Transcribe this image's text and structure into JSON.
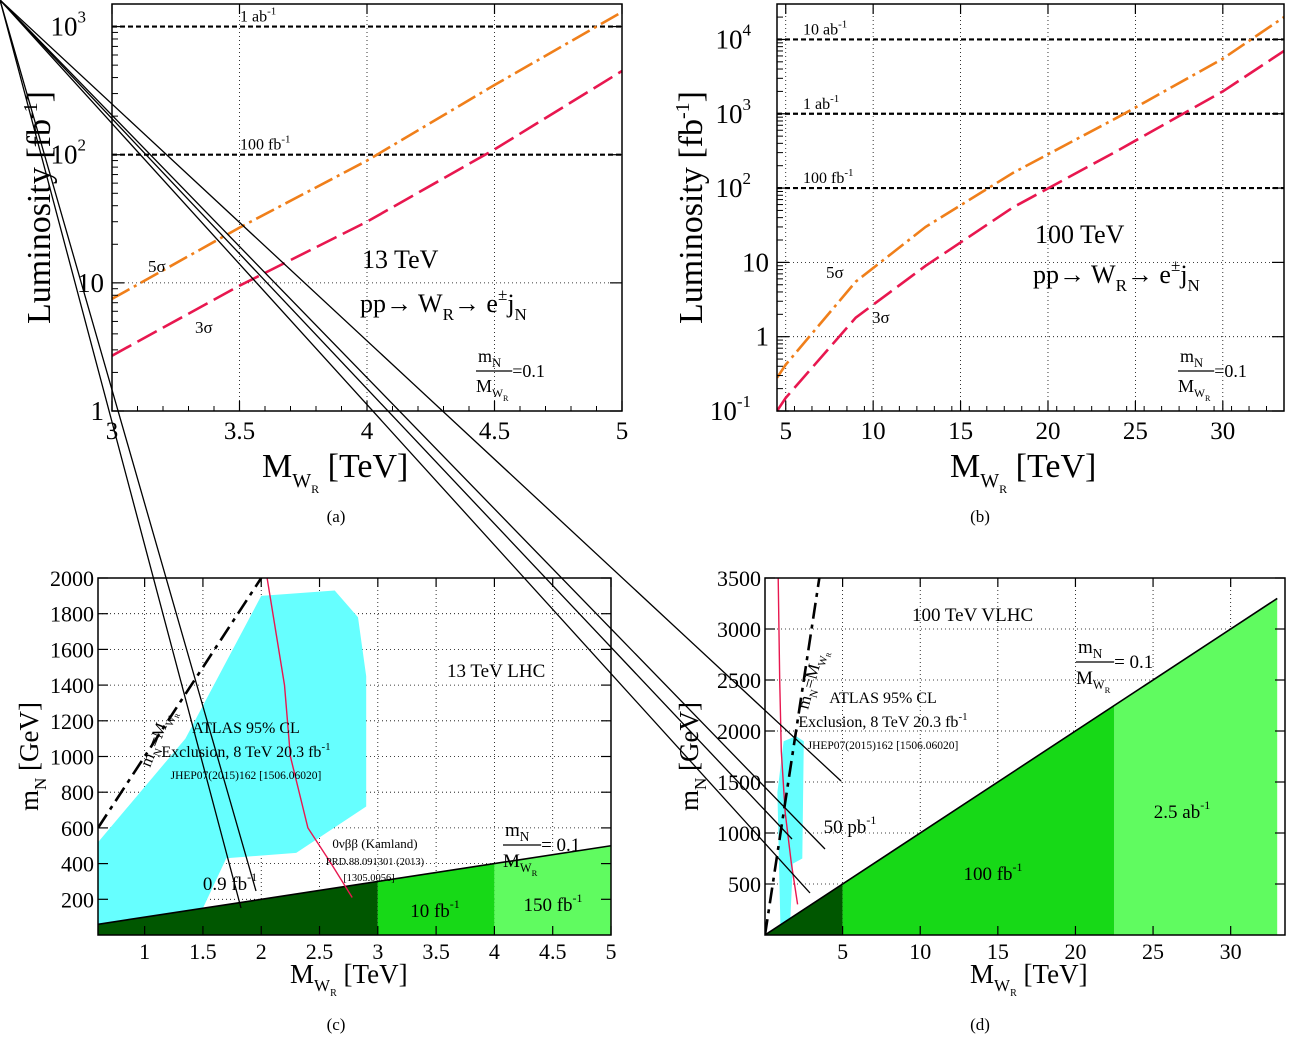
{
  "chart_data": [
    {
      "panel": "(a)",
      "type": "line",
      "xlabel": "M",
      "xlabel_sub": "W",
      "xlabel_subsub": "R",
      "xlabel_unit": "[TeV]",
      "ylabel": "Luminosity [fb",
      "ylabel_sup": "-1",
      "ylabel_end": "]",
      "xlim": [
        3,
        5
      ],
      "ylim": [
        1,
        1500
      ],
      "yscale": "log",
      "grid": true,
      "xticks": [
        {
          "v": 3,
          "label": "3"
        },
        {
          "v": 3.5,
          "label": "3.5"
        },
        {
          "v": 4,
          "label": "4"
        },
        {
          "v": 4.5,
          "label": "4.5"
        },
        {
          "v": 5,
          "label": "5"
        }
      ],
      "yticks": [
        {
          "v": 1,
          "label": "1"
        },
        {
          "v": 10,
          "label": "10"
        },
        {
          "v": 100,
          "label": "10",
          "sup": "2"
        },
        {
          "v": 1000,
          "label": "10",
          "sup": "3"
        }
      ],
      "series": [
        {
          "name": "5σ",
          "color": "#f07f1a",
          "dash": "20,5,3,5",
          "x": [
            3.0,
            3.5,
            4.0,
            4.5,
            5.0
          ],
          "y": [
            7.5,
            27,
            90,
            350,
            1300
          ]
        },
        {
          "name": "3σ",
          "color": "#e8174f",
          "dash": "22,7",
          "x": [
            3.0,
            3.5,
            4.0,
            4.5,
            5.0
          ],
          "y": [
            2.7,
            9.5,
            30,
            110,
            450
          ]
        }
      ],
      "hlines": [
        {
          "y": 1000,
          "label": "1 ab",
          "sup": "-1"
        },
        {
          "y": 100,
          "label": "100 fb",
          "sup": "-1"
        }
      ],
      "annotations": {
        "energy": "13 TeV",
        "process": {
          "a": "pp→ W",
          "a_sub": "R",
          "b": "→ e",
          "b_sup": "±",
          "c": "j",
          "c_sub": "N"
        },
        "ratio": {
          "num": "m",
          "num_sub": "N",
          "den": "M",
          "den_sub": "W",
          "den_subsub": "R",
          "value": "=0.1"
        }
      }
    },
    {
      "panel": "(b)",
      "type": "line",
      "xlabel": "M",
      "xlabel_sub": "W",
      "xlabel_subsub": "R",
      "xlabel_unit": "[TeV]",
      "ylabel": "Luminosity [fb",
      "ylabel_sup": "-1",
      "ylabel_end": "]",
      "xlim": [
        4.5,
        33.5
      ],
      "ylim": [
        0.1,
        30000
      ],
      "yscale": "log",
      "grid": true,
      "xticks": [
        {
          "v": 5,
          "label": "5"
        },
        {
          "v": 10,
          "label": "10"
        },
        {
          "v": 15,
          "label": "15"
        },
        {
          "v": 20,
          "label": "20"
        },
        {
          "v": 25,
          "label": "25"
        },
        {
          "v": 30,
          "label": "30"
        }
      ],
      "yticks": [
        {
          "v": 0.1,
          "label": "10",
          "sup": "-1"
        },
        {
          "v": 1,
          "label": "1"
        },
        {
          "v": 10,
          "label": "10"
        },
        {
          "v": 100,
          "label": "10",
          "sup": "2"
        },
        {
          "v": 1000,
          "label": "10",
          "sup": "3"
        },
        {
          "v": 10000,
          "label": "10",
          "sup": "4"
        }
      ],
      "series": [
        {
          "name": "5σ",
          "color": "#f07f1a",
          "dash": "20,5,3,5",
          "x": [
            4.5,
            5,
            9,
            13,
            18,
            24,
            30,
            33.5
          ],
          "y": [
            0.28,
            0.42,
            5.5,
            30,
            160,
            900,
            5500,
            20000
          ]
        },
        {
          "name": "3σ",
          "color": "#e8174f",
          "dash": "22,7",
          "x": [
            4.5,
            5,
            9,
            13,
            18,
            24,
            30,
            33.5
          ],
          "y": [
            0.1,
            0.15,
            1.8,
            9,
            55,
            320,
            2000,
            7000
          ]
        }
      ],
      "hlines": [
        {
          "y": 10000,
          "label": "10 ab",
          "sup": "-1"
        },
        {
          "y": 1000,
          "label": "1 ab",
          "sup": "-1"
        },
        {
          "y": 100,
          "label": "100 fb",
          "sup": "-1"
        }
      ],
      "annotations": {
        "energy": "100 TeV",
        "process": {
          "a": "pp→ W",
          "a_sub": "R",
          "b": "→ e",
          "b_sup": "±",
          "c": "j",
          "c_sub": "N"
        },
        "ratio": {
          "num": "m",
          "num_sub": "N",
          "den": "M",
          "den_sub": "W",
          "den_subsub": "R",
          "value": "=0.1"
        }
      }
    },
    {
      "panel": "(c)",
      "type": "area",
      "xlabel": "M",
      "xlabel_sub": "W",
      "xlabel_subsub": "R",
      "xlabel_unit": "[TeV]",
      "ylabel": "m",
      "ylabel_sub": "N",
      "ylabel_unit": "[GeV]",
      "xlim": [
        0.6,
        5
      ],
      "ylim": [
        0,
        2000
      ],
      "grid": true,
      "xticks": [
        1,
        1.5,
        2,
        2.5,
        3,
        3.5,
        4,
        4.5,
        5
      ],
      "yticks": [
        200,
        400,
        600,
        800,
        1000,
        1200,
        1400,
        1600,
        1800,
        2000
      ],
      "title": "13 TeV LHC",
      "exclusion": {
        "color": "#66ffff",
        "lines": [
          "ATLAS 95% CL",
          "Exclusion, 8 TeV 20.3 fb",
          "JHEP07(2015)162 [1506.06020]"
        ],
        "sup": "-1",
        "polygon": [
          [
            0.6,
            520
          ],
          [
            0.6,
            50
          ],
          [
            1.5,
            50
          ],
          [
            1.5,
            150
          ],
          [
            1.7,
            430
          ],
          [
            2.3,
            460
          ],
          [
            2.9,
            720
          ],
          [
            2.9,
            1450
          ],
          [
            2.83,
            1780
          ],
          [
            2.63,
            1930
          ],
          [
            2.0,
            1900
          ],
          [
            1.35,
            1100
          ],
          [
            0.6,
            520
          ]
        ]
      },
      "regions": [
        {
          "label": "0.9 fb",
          "sup": "-1",
          "x_from": 0.6,
          "x_to": 3.0,
          "color": "#005700"
        },
        {
          "label": "10 fb",
          "sup": "-1",
          "x_from": 3.0,
          "x_to": 4.0,
          "color": "#17d917"
        },
        {
          "label": "150 fb",
          "sup": "-1",
          "x_from": 4.0,
          "x_to": 5.0,
          "color": "#60fb60"
        }
      ],
      "ratio_line": {
        "slope": 100,
        "num": "m",
        "num_sub": "N",
        "den": "M",
        "den_sub": "W",
        "den_subsub": "R",
        "value": "= 0.1"
      },
      "diagonal_label": {
        "a": "m",
        "a_sub": "N",
        "b": "=M",
        "b_sub": "W",
        "b_subsub": "R"
      },
      "diagonal": {
        "x": [
          0.6,
          2.0
        ],
        "y": [
          600,
          2000
        ]
      },
      "kamland": {
        "lines": [
          "0νββ (Kamland)",
          "PRD.88.091301 (2013)",
          "[1305.0056]"
        ],
        "x": [
          2.05,
          2.2,
          2.25,
          2.4,
          2.6,
          2.78
        ],
        "y": [
          2000,
          1400,
          1000,
          600,
          400,
          210
        ],
        "color": "#e8174f"
      }
    },
    {
      "panel": "(d)",
      "type": "area",
      "xlabel": "M",
      "xlabel_sub": "W",
      "xlabel_subsub": "R",
      "xlabel_unit": "[TeV]",
      "ylabel": "m",
      "ylabel_sub": "N",
      "ylabel_unit": "[GeV]",
      "xlim": [
        0,
        33.5
      ],
      "ylim": [
        0,
        3500
      ],
      "grid": true,
      "xticks": [
        5,
        10,
        15,
        20,
        25,
        30
      ],
      "yticks": [
        500,
        1000,
        1500,
        2000,
        2500,
        3000,
        3500
      ],
      "title": "100 TeV VLHC",
      "exclusion": {
        "color": "#66ffff",
        "lines": [
          "ATLAS 95% CL",
          "Exclusion, 8 TeV 20.3 fb",
          "JHEP07(2015)162 [1506.06020]"
        ],
        "sup": "-1",
        "polygon": [
          [
            0.8,
            1400
          ],
          [
            1.0,
            50
          ],
          [
            1.6,
            50
          ],
          [
            1.8,
            700
          ],
          [
            2.4,
            750
          ],
          [
            2.5,
            1900
          ],
          [
            2.0,
            1950
          ],
          [
            1.2,
            1900
          ],
          [
            0.8,
            1400
          ]
        ]
      },
      "regions": [
        {
          "label": "50 pb",
          "sup": "-1",
          "x_from": 0,
          "x_to": 5.0,
          "color": "#005700"
        },
        {
          "label": "100 fb",
          "sup": "-1",
          "x_from": 5.0,
          "x_to": 22.5,
          "color": "#17d917"
        },
        {
          "label": "2.5 ab",
          "sup": "-1",
          "x_from": 22.5,
          "x_to": 33.0,
          "color": "#60fb60"
        }
      ],
      "ratio_line": {
        "slope": 100,
        "num": "m",
        "num_sub": "N",
        "den": "M",
        "den_sub": "W",
        "den_subsub": "R",
        "value": "= 0.1"
      },
      "diagonal_label": {
        "a": "m",
        "a_sub": "N",
        "b": "=M",
        "b_sub": "W",
        "b_subsub": "R"
      },
      "diagonal": {
        "x": [
          0,
          3.5
        ],
        "y": [
          0,
          3500
        ]
      },
      "kamland": {
        "x": [
          0.85,
          0.95,
          1.05,
          1.3,
          1.7,
          2.1
        ],
        "y": [
          3500,
          2500,
          1800,
          1200,
          700,
          300
        ],
        "color": "#e8174f"
      }
    }
  ],
  "captions": [
    "(a)",
    "(b)",
    "(c)",
    "(d)"
  ]
}
